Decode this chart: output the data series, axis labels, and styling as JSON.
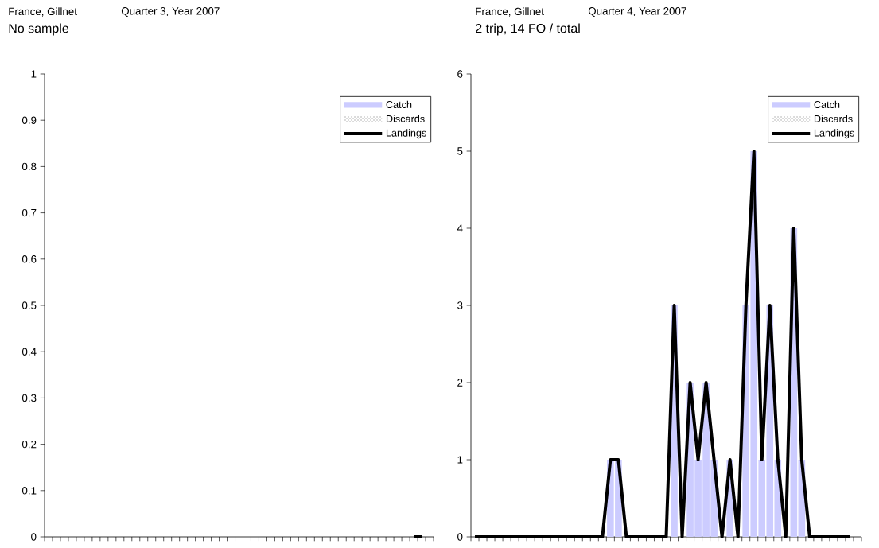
{
  "chart_data": [
    {
      "type": "bar",
      "title": "France, Gillnet",
      "subtitle": "Quarter 3, Year 2007",
      "annotations": [
        "No sample"
      ],
      "categories": [
        null,
        null,
        null,
        null,
        null,
        null,
        null,
        null,
        null,
        null,
        null,
        null,
        null,
        null,
        null,
        null,
        null,
        null,
        null,
        null,
        null,
        null,
        null,
        null,
        null,
        null,
        null,
        null,
        null,
        null,
        null,
        null,
        null,
        null,
        null,
        null,
        null,
        null,
        null,
        null,
        null,
        null,
        null,
        null,
        null,
        null,
        null,
        null,
        null
      ],
      "series": [
        {
          "name": "Catch",
          "color": "#ccccff",
          "values": [
            null,
            null,
            null,
            null,
            null,
            null,
            null,
            null,
            null,
            null,
            null,
            null,
            null,
            null,
            null,
            null,
            null,
            null,
            null,
            null,
            null,
            null,
            null,
            null,
            null,
            null,
            null,
            null,
            null,
            null,
            null,
            null,
            null,
            null,
            null,
            null,
            null,
            null,
            null,
            null,
            null,
            null,
            null,
            null,
            null,
            null,
            null,
            null,
            null
          ]
        },
        {
          "name": "Discards",
          "color": "#999999",
          "values": [
            null,
            null,
            null,
            null,
            null,
            null,
            null,
            null,
            null,
            null,
            null,
            null,
            null,
            null,
            null,
            null,
            null,
            null,
            null,
            null,
            null,
            null,
            null,
            null,
            null,
            null,
            null,
            null,
            null,
            null,
            null,
            null,
            null,
            null,
            null,
            null,
            null,
            null,
            null,
            null,
            null,
            null,
            null,
            null,
            null,
            null,
            null,
            null,
            null
          ]
        },
        {
          "name": "Landings",
          "type": "line",
          "color": "#000000",
          "values": [
            null,
            null,
            null,
            null,
            null,
            null,
            null,
            null,
            null,
            null,
            null,
            null,
            null,
            null,
            null,
            null,
            null,
            null,
            null,
            null,
            null,
            null,
            null,
            null,
            null,
            null,
            null,
            null,
            null,
            null,
            null,
            null,
            null,
            null,
            null,
            null,
            null,
            null,
            null,
            null,
            null,
            null,
            null,
            null,
            null,
            null,
            0,
            0,
            null
          ]
        }
      ],
      "ylim": [
        0,
        1
      ],
      "yticks": [
        0,
        0.1,
        0.2,
        0.3,
        0.4,
        0.5,
        0.6,
        0.7,
        0.8,
        0.9,
        1
      ],
      "tick_labels": "y",
      "legend": "top right"
    },
    {
      "type": "bar",
      "title": "France, Gillnet",
      "subtitle": "Quarter 4, Year 2007",
      "annotations": [
        "2 trip, 14 FO /  total"
      ],
      "categories": [
        null,
        null,
        null,
        null,
        null,
        null,
        null,
        null,
        null,
        null,
        null,
        null,
        null,
        null,
        null,
        null,
        null,
        null,
        null,
        null,
        null,
        null,
        null,
        null,
        null,
        null,
        null,
        null,
        null,
        null,
        null,
        null,
        null,
        null,
        null,
        null,
        null,
        null,
        null,
        null,
        null,
        null,
        null,
        null,
        null,
        null,
        null,
        null,
        null
      ],
      "series": [
        {
          "name": "Catch",
          "color": "#ccccff",
          "values": [
            0,
            0,
            0,
            0,
            0,
            0,
            0,
            0,
            0,
            0,
            0,
            0,
            0,
            0,
            0,
            0,
            0,
            1,
            1,
            0,
            0,
            0,
            0,
            0,
            0,
            3,
            0,
            2,
            1,
            2,
            1,
            0,
            1,
            0,
            3,
            5,
            1,
            3,
            1,
            0,
            4,
            1,
            0,
            0,
            0,
            0,
            0,
            0,
            null
          ]
        },
        {
          "name": "Discards",
          "color": "#999999",
          "values": [
            0,
            0,
            0,
            0,
            0,
            0,
            0,
            0,
            0,
            0,
            0,
            0,
            0,
            0,
            0,
            0,
            0,
            0,
            0,
            0,
            0,
            0,
            0,
            0,
            0,
            0,
            0,
            0,
            0,
            0,
            0,
            0,
            0,
            0,
            0,
            0,
            0,
            0,
            0,
            0,
            0,
            0,
            0,
            0,
            0,
            0,
            0,
            0,
            null
          ]
        },
        {
          "name": "Landings",
          "type": "line",
          "color": "#000000",
          "values": [
            0,
            0,
            0,
            0,
            0,
            0,
            0,
            0,
            0,
            0,
            0,
            0,
            0,
            0,
            0,
            0,
            0,
            1,
            1,
            0,
            0,
            0,
            0,
            0,
            0,
            3,
            0,
            2,
            1,
            2,
            1,
            0,
            1,
            0,
            3,
            5,
            1,
            3,
            1,
            0,
            4,
            1,
            0,
            0,
            0,
            0,
            0,
            0,
            null
          ]
        }
      ],
      "ylim": [
        0,
        6
      ],
      "yticks": [
        0,
        1,
        2,
        3,
        4,
        5,
        6
      ],
      "tick_labels": "y",
      "legend": "top right"
    }
  ]
}
